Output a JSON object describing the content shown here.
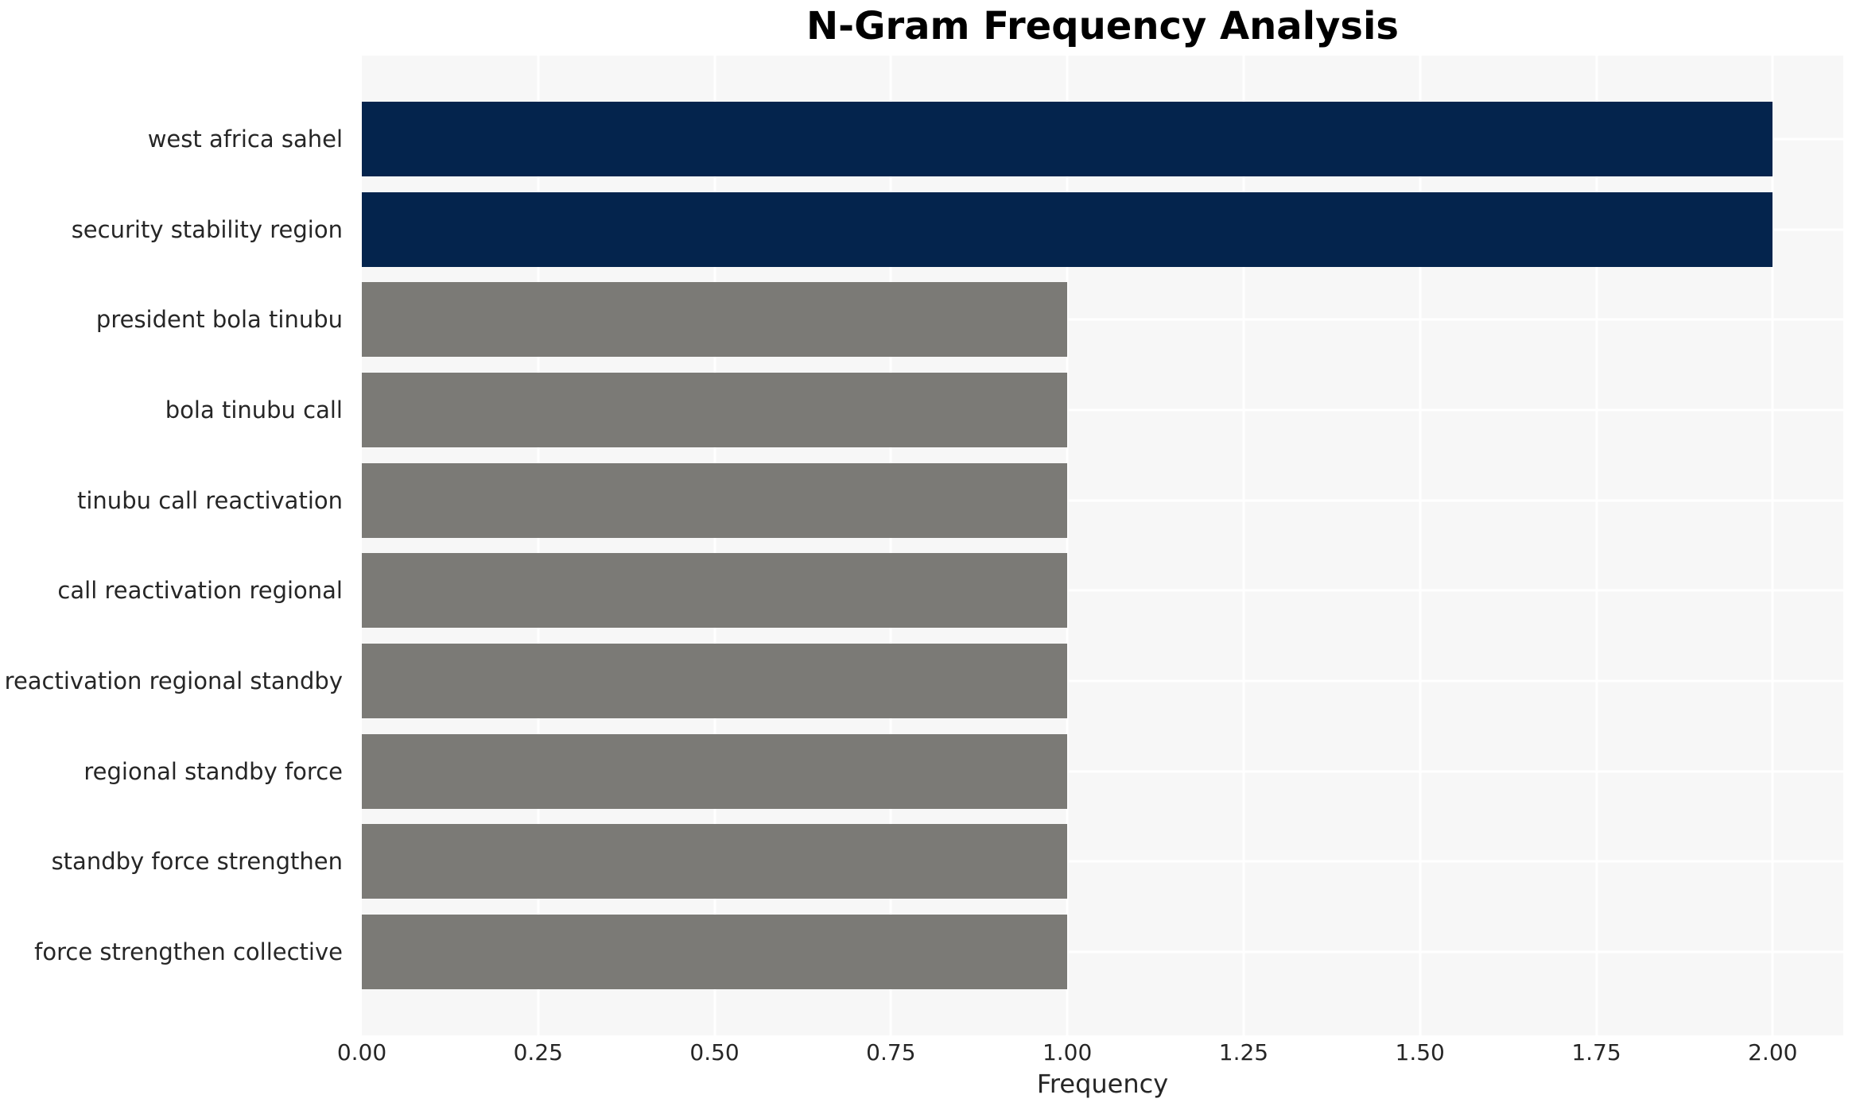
{
  "chart_data": {
    "type": "bar",
    "orientation": "horizontal",
    "title": "N-Gram Frequency Analysis",
    "xlabel": "Frequency",
    "ylabel": "",
    "categories": [
      "west africa sahel",
      "security stability region",
      "president bola tinubu",
      "bola tinubu call",
      "tinubu call reactivation",
      "call reactivation regional",
      "reactivation regional standby",
      "regional standby force",
      "standby force strengthen",
      "force strengthen collective"
    ],
    "values": [
      2,
      2,
      1,
      1,
      1,
      1,
      1,
      1,
      1,
      1
    ],
    "bar_colors": [
      "#04244D",
      "#04244D",
      "#7B7A76",
      "#7B7A76",
      "#7B7A76",
      "#7B7A76",
      "#7B7A76",
      "#7B7A76",
      "#7B7A76",
      "#7B7A76"
    ],
    "xlim": [
      0,
      2.1
    ],
    "xticks": {
      "values": [
        0,
        0.25,
        0.5,
        0.75,
        1.0,
        1.25,
        1.5,
        1.75,
        2.0
      ],
      "labels": [
        "0.00",
        "0.25",
        "0.50",
        "0.75",
        "1.00",
        "1.25",
        "1.50",
        "1.75",
        "2.00"
      ]
    },
    "grid": "white gridlines (vertical at ticks, horizontal at bar centers) on light-gray panel",
    "legend": false,
    "colors": {
      "highlight_navy": "#04244D",
      "default_gray": "#7B7A76",
      "plot_background": "#F7F7F7",
      "gridline": "#FFFFFF",
      "tick_text": "#262626",
      "title_text": "#000000",
      "figure_background": "#FFFFFF"
    }
  }
}
